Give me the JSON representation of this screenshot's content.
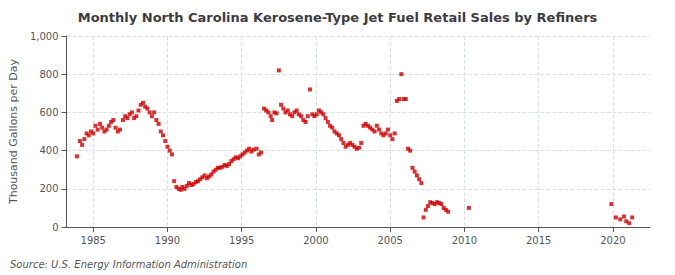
{
  "chart_data": {
    "type": "scatter",
    "title": "Monthly North Carolina Kerosene-Type Jet Fuel Retail Sales by Refiners",
    "ylabel": "Thousand Gallons per Day",
    "source": "Source: U.S. Energy Information Administration",
    "color": "#cc0000",
    "marker": "square",
    "grid": true,
    "xlim": [
      1983.2,
      2022.5
    ],
    "ylim": [
      0,
      1000
    ],
    "xticks": [
      1985,
      1990,
      1995,
      2000,
      2005,
      2010,
      2015,
      2020
    ],
    "yticks": [
      0,
      200,
      400,
      600,
      800,
      {
        "value": 1000,
        "label": "1,000"
      }
    ],
    "x": [
      1983.9,
      1984.1,
      1984.25,
      1984.4,
      1984.55,
      1984.7,
      1984.85,
      1985.0,
      1985.15,
      1985.3,
      1985.45,
      1985.6,
      1985.75,
      1985.9,
      1986.05,
      1986.2,
      1986.35,
      1986.5,
      1986.65,
      1986.8,
      1987.0,
      1987.15,
      1987.3,
      1987.45,
      1987.6,
      1987.75,
      1987.9,
      1988.05,
      1988.2,
      1988.35,
      1988.5,
      1988.65,
      1988.8,
      1988.95,
      1989.1,
      1989.25,
      1989.4,
      1989.55,
      1989.7,
      1989.85,
      1990.0,
      1990.15,
      1990.3,
      1990.45,
      1990.6,
      1990.75,
      1990.9,
      1991.0,
      1991.15,
      1991.3,
      1991.45,
      1991.6,
      1991.75,
      1991.9,
      1992.05,
      1992.2,
      1992.35,
      1992.5,
      1992.65,
      1992.8,
      1992.95,
      1993.1,
      1993.25,
      1993.4,
      1993.55,
      1993.7,
      1993.85,
      1994.0,
      1994.15,
      1994.3,
      1994.45,
      1994.6,
      1994.75,
      1994.9,
      1995.05,
      1995.2,
      1995.35,
      1995.5,
      1995.65,
      1995.8,
      1996.0,
      1996.15,
      1996.3,
      1996.5,
      1996.65,
      1996.8,
      1996.95,
      1997.05,
      1997.2,
      1997.35,
      1997.5,
      1997.65,
      1997.8,
      1997.95,
      1998.1,
      1998.25,
      1998.4,
      1998.55,
      1998.7,
      1998.85,
      1999.0,
      1999.15,
      1999.3,
      1999.45,
      1999.6,
      1999.75,
      1999.9,
      2000.05,
      2000.2,
      2000.35,
      2000.5,
      2000.65,
      2000.8,
      2000.95,
      2001.1,
      2001.25,
      2001.4,
      2001.55,
      2001.7,
      2001.85,
      2002.0,
      2002.15,
      2002.3,
      2002.45,
      2002.6,
      2002.75,
      2002.9,
      2003.05,
      2003.2,
      2003.35,
      2003.5,
      2003.65,
      2003.8,
      2003.95,
      2004.1,
      2004.25,
      2004.4,
      2004.55,
      2004.7,
      2004.85,
      2005.0,
      2005.15,
      2005.3,
      2005.45,
      2005.6,
      2005.75,
      2005.9,
      2006.05,
      2006.2,
      2006.35,
      2006.5,
      2006.65,
      2006.8,
      2006.95,
      2007.1,
      2007.25,
      2007.4,
      2007.55,
      2007.7,
      2007.85,
      2008.0,
      2008.15,
      2008.3,
      2008.45,
      2008.6,
      2008.75,
      2008.9,
      2010.3,
      2019.9,
      2020.2,
      2020.5,
      2020.75,
      2020.9,
      2021.1,
      2021.3
    ],
    "values": [
      370,
      450,
      430,
      460,
      490,
      480,
      500,
      490,
      530,
      510,
      540,
      520,
      500,
      510,
      530,
      550,
      560,
      520,
      500,
      510,
      560,
      580,
      570,
      590,
      600,
      570,
      580,
      610,
      640,
      650,
      630,
      620,
      600,
      580,
      600,
      560,
      540,
      500,
      480,
      450,
      420,
      400,
      380,
      240,
      210,
      200,
      195,
      210,
      200,
      215,
      230,
      220,
      225,
      235,
      240,
      250,
      260,
      270,
      255,
      265,
      275,
      290,
      300,
      310,
      310,
      315,
      325,
      320,
      330,
      345,
      355,
      365,
      360,
      370,
      380,
      390,
      400,
      410,
      395,
      405,
      410,
      380,
      390,
      620,
      610,
      600,
      580,
      560,
      600,
      595,
      820,
      640,
      620,
      600,
      610,
      590,
      580,
      600,
      610,
      590,
      580,
      560,
      550,
      580,
      720,
      590,
      580,
      590,
      610,
      600,
      590,
      570,
      550,
      530,
      520,
      500,
      490,
      480,
      460,
      440,
      420,
      430,
      440,
      430,
      420,
      410,
      415,
      440,
      530,
      540,
      530,
      520,
      510,
      500,
      530,
      510,
      490,
      480,
      490,
      510,
      480,
      460,
      490,
      660,
      670,
      800,
      670,
      670,
      410,
      400,
      310,
      290,
      270,
      250,
      230,
      50,
      90,
      110,
      130,
      125,
      120,
      130,
      125,
      120,
      100,
      90,
      80,
      100,
      120,
      50,
      40,
      55,
      30,
      20,
      50
    ]
  }
}
